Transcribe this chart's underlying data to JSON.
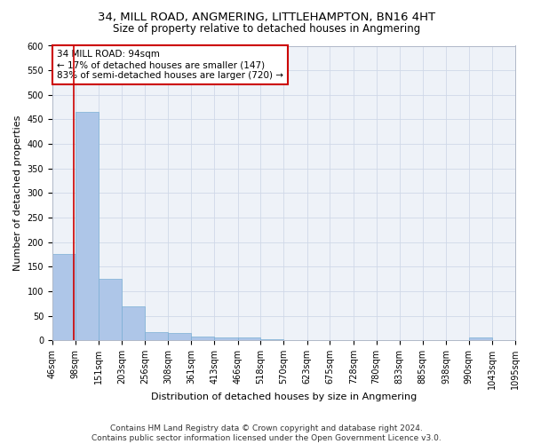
{
  "title1": "34, MILL ROAD, ANGMERING, LITTLEHAMPTON, BN16 4HT",
  "title2": "Size of property relative to detached houses in Angmering",
  "xlabel": "Distribution of detached houses by size in Angmering",
  "ylabel": "Number of detached properties",
  "footer1": "Contains HM Land Registry data © Crown copyright and database right 2024.",
  "footer2": "Contains public sector information licensed under the Open Government Licence v3.0.",
  "annotation_line1": "34 MILL ROAD: 94sqm",
  "annotation_line2": "← 17% of detached houses are smaller (147)",
  "annotation_line3": "83% of semi-detached houses are larger (720) →",
  "property_sqm": 94,
  "bar_edges": [
    46,
    98,
    151,
    203,
    256,
    308,
    361,
    413,
    466,
    518,
    570,
    623,
    675,
    728,
    780,
    833,
    885,
    938,
    990,
    1043,
    1095
  ],
  "bar_heights": [
    175,
    465,
    125,
    70,
    17,
    15,
    8,
    5,
    5,
    2,
    1,
    1,
    0,
    0,
    0,
    0,
    0,
    0,
    5,
    1,
    0
  ],
  "bar_color": "#aec6e8",
  "bar_edge_color": "#7aafd4",
  "vline_color": "#cc0000",
  "annotation_box_edge": "#cc0000",
  "grid_color": "#d0d8e8",
  "bg_color": "#eef2f8",
  "ylim": [
    0,
    600
  ],
  "yticks": [
    0,
    50,
    100,
    150,
    200,
    250,
    300,
    350,
    400,
    450,
    500,
    550,
    600
  ],
  "title_fontsize": 9.5,
  "subtitle_fontsize": 8.5,
  "axis_label_fontsize": 8,
  "tick_fontsize": 7,
  "footer_fontsize": 6.5,
  "annotation_fontsize": 7.5
}
